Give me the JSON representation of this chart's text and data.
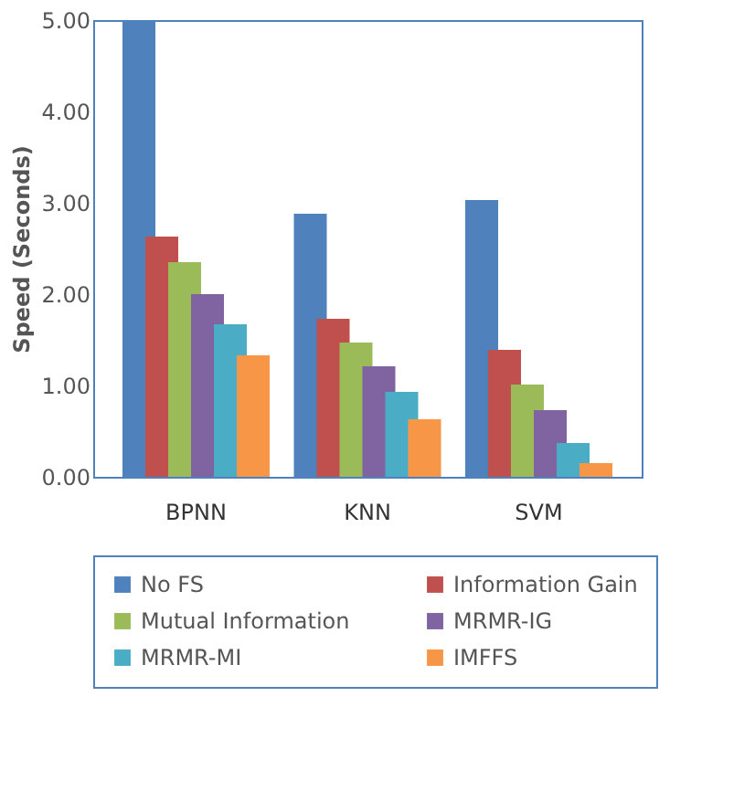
{
  "chart_data": {
    "type": "bar",
    "ylabel": "Speed (Seconds)",
    "categories": [
      "BPNN",
      "KNN",
      "SVM"
    ],
    "series": [
      {
        "name": "No FS",
        "color": "#4f81bd",
        "values": [
          5.0,
          2.88,
          3.03
        ]
      },
      {
        "name": "Information Gain",
        "color": "#c0504d",
        "values": [
          2.63,
          1.73,
          1.39
        ]
      },
      {
        "name": "Mutual Information",
        "color": "#9bbb59",
        "values": [
          2.35,
          1.47,
          1.01
        ]
      },
      {
        "name": "MRMR-IG",
        "color": "#8064a2",
        "values": [
          2.0,
          1.21,
          0.73
        ]
      },
      {
        "name": "MRMR-MI",
        "color": "#4bacc6",
        "values": [
          1.67,
          0.93,
          0.37
        ]
      },
      {
        "name": "IMFFS",
        "color": "#f79646",
        "values": [
          1.33,
          0.63,
          0.15
        ]
      }
    ],
    "ylim": [
      0,
      5
    ],
    "yticks": [
      {
        "value": 0,
        "label": "0.00"
      },
      {
        "value": 1,
        "label": "1.00"
      },
      {
        "value": 2,
        "label": "2.00"
      },
      {
        "value": 3,
        "label": "3.00"
      },
      {
        "value": 4,
        "label": "4.00"
      },
      {
        "value": 5,
        "label": "5.00"
      }
    ],
    "grid": false,
    "legend": "bottom"
  }
}
